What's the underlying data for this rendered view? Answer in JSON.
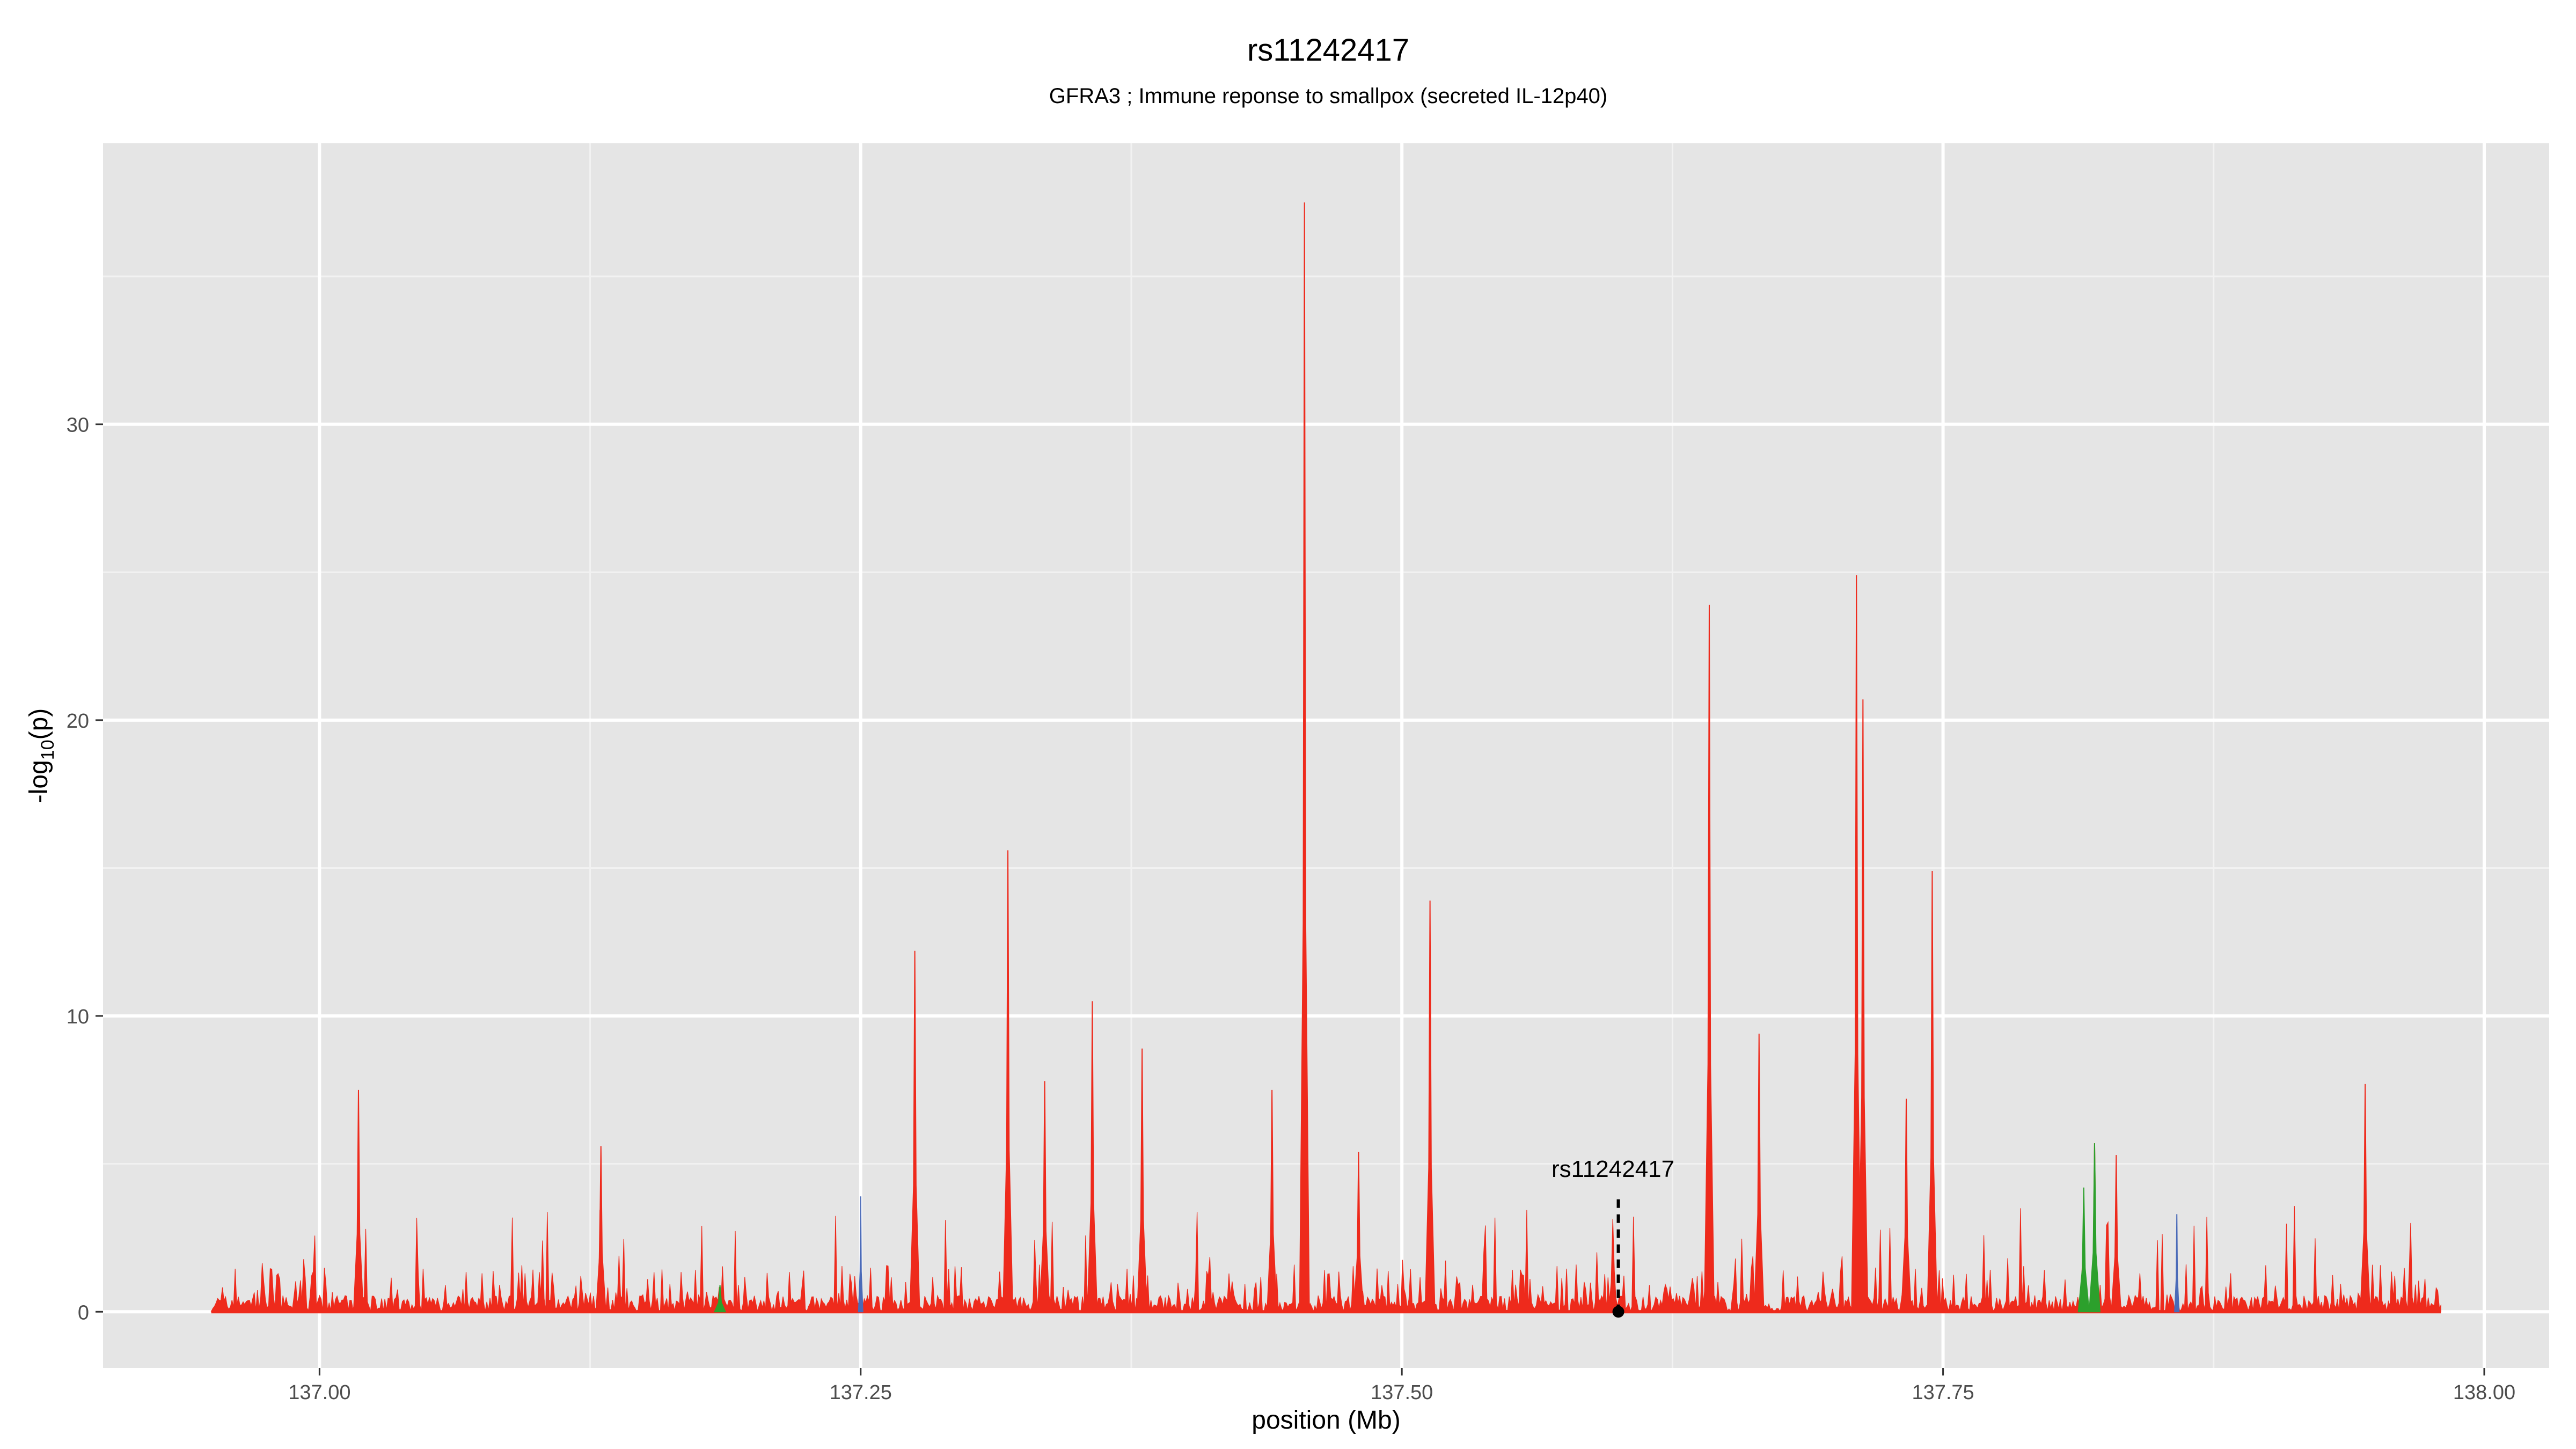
{
  "chart_data": {
    "type": "area",
    "title": "rs11242417",
    "subtitle": "GFRA3 ; Immune reponse to smallpox (secreted IL-12p40)",
    "xlabel": "position (Mb)",
    "ylabel_main": "-log",
    "ylabel_sub": "10",
    "ylabel_end": "(p)",
    "xlim": [
      136.9,
      138.03
    ],
    "ylim": [
      -1.9,
      39.5
    ],
    "x_ticks": [
      137.0,
      137.25,
      137.5,
      137.75,
      138.0
    ],
    "x_tick_labels": [
      "137.00",
      "137.25",
      "137.50",
      "137.75",
      "138.00"
    ],
    "y_ticks": [
      0,
      10,
      20,
      30
    ],
    "y_tick_labels": [
      "0",
      "10",
      "20",
      "30"
    ],
    "grid": true,
    "background": "#e5e5e5",
    "colors": {
      "main": "#ee2a1c",
      "secondary": "#f08c1e",
      "green": "#2ca02c",
      "blue": "#4a6ab8"
    },
    "x_range_data": [
      136.95,
      137.98
    ],
    "peaks": [
      {
        "x": 137.018,
        "y": 7.5
      },
      {
        "x": 137.13,
        "y": 5.6
      },
      {
        "x": 137.275,
        "y": 12.2
      },
      {
        "x": 137.318,
        "y": 15.6
      },
      {
        "x": 137.335,
        "y": 7.8
      },
      {
        "x": 137.357,
        "y": 10.5
      },
      {
        "x": 137.38,
        "y": 8.9
      },
      {
        "x": 137.44,
        "y": 7.5
      },
      {
        "x": 137.455,
        "y": 37.5
      },
      {
        "x": 137.48,
        "y": 5.4
      },
      {
        "x": 137.513,
        "y": 13.9
      },
      {
        "x": 137.642,
        "y": 23.9
      },
      {
        "x": 137.665,
        "y": 9.4
      },
      {
        "x": 137.71,
        "y": 24.9
      },
      {
        "x": 137.713,
        "y": 20.7
      },
      {
        "x": 137.733,
        "y": 7.2
      },
      {
        "x": 137.745,
        "y": 14.9
      },
      {
        "x": 137.82,
        "y": 5.7
      },
      {
        "x": 137.83,
        "y": 5.3
      },
      {
        "x": 137.945,
        "y": 7.7
      }
    ],
    "green_peaks": [
      {
        "x": 137.185,
        "y": 0.9
      },
      {
        "x": 137.815,
        "y": 4.2
      },
      {
        "x": 137.82,
        "y": 5.7
      }
    ],
    "blue_peaks": [
      {
        "x": 137.25,
        "y": 3.9
      },
      {
        "x": 137.858,
        "y": 3.3
      }
    ],
    "annotation": {
      "label": "rs11242417",
      "x": 137.6,
      "y": 0,
      "line_top": 3.8
    }
  }
}
